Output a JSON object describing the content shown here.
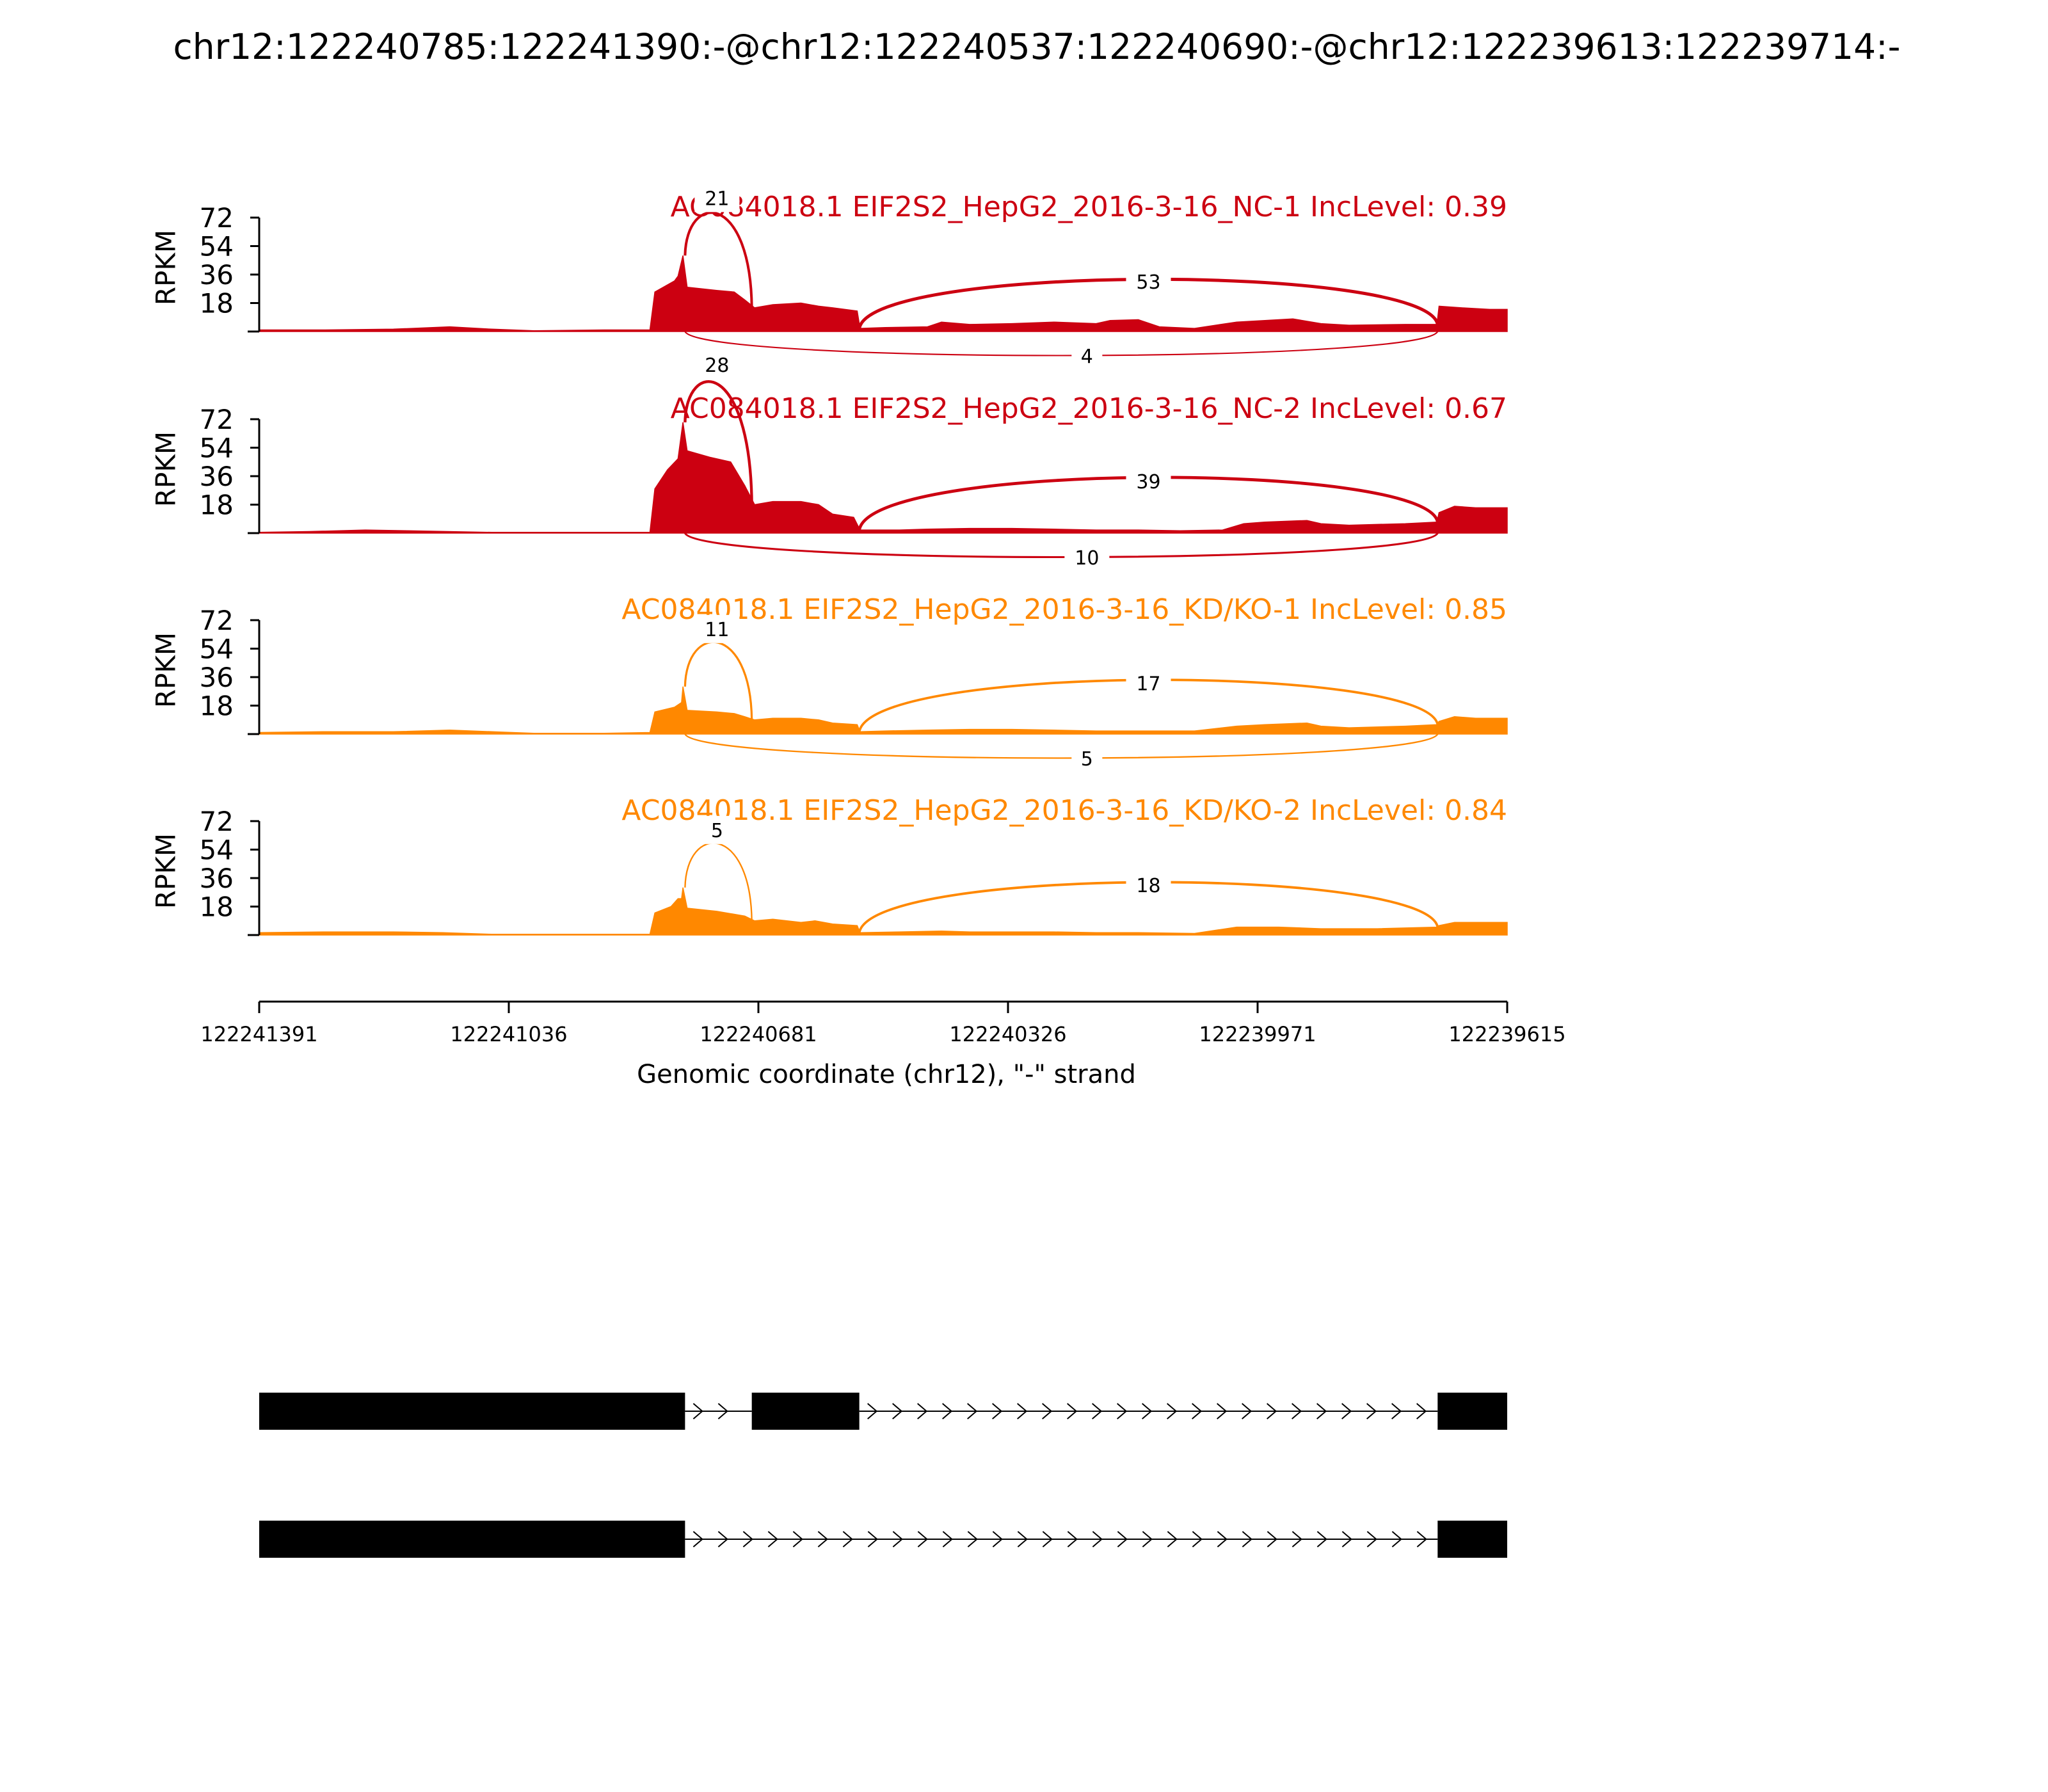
{
  "chart_data": {
    "type": "sashimi",
    "title": "chr12:122240785:122241390:-@chr12:122240537:122240690:-@chr12:122239613:122239714:-",
    "xlabel": "Genomic coordinate (chr12), \"-\" strand",
    "ylabel": "RPKM",
    "xlim": [
      122241391,
      122239615
    ],
    "x_ticks": [
      "122241391",
      "122241036",
      "122240681",
      "122240326",
      "122239971",
      "122239615"
    ],
    "ylim": [
      0,
      72
    ],
    "y_ticks": [
      "72",
      "54",
      "36",
      "18"
    ],
    "colors": {
      "nc": "#cc0011",
      "kd": "#ff8800",
      "structure": "#000000"
    },
    "tracks": [
      {
        "name": "AC084018.1 EIF2S2_HepG2_2016-3-16_NC-1 IncLevel: 0.39",
        "color": "#cc0011",
        "coverage": [
          [
            122241391,
            1.0
          ],
          [
            122241300,
            1.0
          ],
          [
            122241200,
            1.5
          ],
          [
            122241120,
            3.0
          ],
          [
            122241060,
            1.5
          ],
          [
            122241000,
            0.5
          ],
          [
            122240900,
            1.0
          ],
          [
            122240835,
            1.0
          ],
          [
            122240828,
            25
          ],
          [
            122240800,
            32
          ],
          [
            122240795,
            35
          ],
          [
            122240788,
            48
          ],
          [
            122240782,
            28
          ],
          [
            122240740,
            26
          ],
          [
            122240715,
            25
          ],
          [
            122240700,
            20
          ],
          [
            122240686,
            15
          ],
          [
            122240660,
            17
          ],
          [
            122240620,
            18
          ],
          [
            122240595,
            16
          ],
          [
            122240575,
            15
          ],
          [
            122240540,
            13
          ],
          [
            122240536,
            2
          ],
          [
            122240500,
            2.5
          ],
          [
            122240440,
            3
          ],
          [
            122240420,
            6
          ],
          [
            122240380,
            4.5
          ],
          [
            122240320,
            5
          ],
          [
            122240260,
            6
          ],
          [
            122240200,
            5
          ],
          [
            122240180,
            7
          ],
          [
            122240140,
            7.5
          ],
          [
            122240110,
            3
          ],
          [
            122240060,
            2
          ],
          [
            122240000,
            6
          ],
          [
            122239920,
            8
          ],
          [
            122239880,
            5
          ],
          [
            122239840,
            4
          ],
          [
            122239760,
            4.5
          ],
          [
            122239715,
            4.5
          ],
          [
            122239712,
            16
          ],
          [
            122239680,
            15
          ],
          [
            122239640,
            14
          ],
          [
            122239615,
            14
          ]
        ],
        "junctions": [
          {
            "label": "21",
            "from": 122240785,
            "to": 122240690,
            "side": "above"
          },
          {
            "label": "53",
            "from": 122240537,
            "to": 122239714,
            "side": "above"
          },
          {
            "label": "4",
            "from": 122240785,
            "to": 122239714,
            "side": "below"
          }
        ]
      },
      {
        "name": "AC084018.1 EIF2S2_HepG2_2016-3-16_NC-2 IncLevel: 0.67",
        "color": "#cc0011",
        "coverage": [
          [
            122241391,
            0.5
          ],
          [
            122241320,
            1.0
          ],
          [
            122241240,
            2.0
          ],
          [
            122241180,
            1.5
          ],
          [
            122241060,
            0.5
          ],
          [
            122240960,
            0.5
          ],
          [
            122240835,
            0.5
          ],
          [
            122240828,
            28
          ],
          [
            122240810,
            40
          ],
          [
            122240795,
            47
          ],
          [
            122240788,
            70
          ],
          [
            122240782,
            52
          ],
          [
            122240750,
            48
          ],
          [
            122240720,
            45
          ],
          [
            122240700,
            30
          ],
          [
            122240686,
            18
          ],
          [
            122240660,
            20
          ],
          [
            122240620,
            20
          ],
          [
            122240595,
            18
          ],
          [
            122240575,
            12
          ],
          [
            122240545,
            10
          ],
          [
            122240536,
            2
          ],
          [
            122240480,
            2
          ],
          [
            122240440,
            2.5
          ],
          [
            122240380,
            3
          ],
          [
            122240320,
            3
          ],
          [
            122240260,
            2.5
          ],
          [
            122240200,
            2
          ],
          [
            122240140,
            2
          ],
          [
            122240080,
            1.5
          ],
          [
            122240020,
            2
          ],
          [
            122239990,
            6
          ],
          [
            122239960,
            7
          ],
          [
            122239900,
            8
          ],
          [
            122239880,
            6
          ],
          [
            122239840,
            5
          ],
          [
            122239760,
            6
          ],
          [
            122239715,
            7
          ],
          [
            122239712,
            13
          ],
          [
            122239690,
            17
          ],
          [
            122239660,
            16
          ],
          [
            122239615,
            16
          ]
        ],
        "junctions": [
          {
            "label": "28",
            "from": 122240785,
            "to": 122240690,
            "side": "above"
          },
          {
            "label": "39",
            "from": 122240537,
            "to": 122239714,
            "side": "above"
          },
          {
            "label": "10",
            "from": 122240785,
            "to": 122239714,
            "side": "below"
          }
        ]
      },
      {
        "name": "AC084018.1 EIF2S2_HepG2_2016-3-16_KD/KO-1 IncLevel: 0.85",
        "color": "#ff8800",
        "coverage": [
          [
            122241391,
            1.0
          ],
          [
            122241300,
            1.5
          ],
          [
            122241200,
            1.5
          ],
          [
            122241120,
            2.5
          ],
          [
            122241060,
            1.5
          ],
          [
            122241000,
            0.5
          ],
          [
            122240900,
            0.5
          ],
          [
            122240835,
            1.0
          ],
          [
            122240828,
            14
          ],
          [
            122240800,
            17
          ],
          [
            122240790,
            20
          ],
          [
            122240788,
            30
          ],
          [
            122240782,
            15
          ],
          [
            122240740,
            14
          ],
          [
            122240715,
            13
          ],
          [
            122240700,
            11
          ],
          [
            122240686,
            9
          ],
          [
            122240660,
            10
          ],
          [
            122240620,
            10
          ],
          [
            122240595,
            9
          ],
          [
            122240575,
            7
          ],
          [
            122240540,
            6
          ],
          [
            122240536,
            1.5
          ],
          [
            122240500,
            2
          ],
          [
            122240440,
            2.5
          ],
          [
            122240380,
            3
          ],
          [
            122240320,
            3
          ],
          [
            122240260,
            2.5
          ],
          [
            122240200,
            2
          ],
          [
            122240140,
            2
          ],
          [
            122240060,
            2
          ],
          [
            122240000,
            5
          ],
          [
            122239960,
            6
          ],
          [
            122239900,
            7
          ],
          [
            122239880,
            5
          ],
          [
            122239840,
            4
          ],
          [
            122239760,
            5
          ],
          [
            122239715,
            6
          ],
          [
            122239712,
            8
          ],
          [
            122239690,
            11
          ],
          [
            122239660,
            10
          ],
          [
            122239615,
            10
          ]
        ],
        "junctions": [
          {
            "label": "11",
            "from": 122240785,
            "to": 122240690,
            "side": "above"
          },
          {
            "label": "17",
            "from": 122240537,
            "to": 122239714,
            "side": "above"
          },
          {
            "label": "5",
            "from": 122240785,
            "to": 122239714,
            "side": "below"
          }
        ]
      },
      {
        "name": "AC084018.1 EIF2S2_HepG2_2016-3-16_KD/KO-2 IncLevel: 0.84",
        "color": "#ff8800",
        "coverage": [
          [
            122241391,
            1.5
          ],
          [
            122241300,
            2.0
          ],
          [
            122241200,
            2.0
          ],
          [
            122241130,
            1.5
          ],
          [
            122241060,
            0.5
          ],
          [
            122240960,
            0.5
          ],
          [
            122240835,
            0.5
          ],
          [
            122240828,
            14
          ],
          [
            122240805,
            18
          ],
          [
            122240795,
            23
          ],
          [
            122240790,
            23
          ],
          [
            122240788,
            30
          ],
          [
            122240782,
            17
          ],
          [
            122240740,
            15
          ],
          [
            122240700,
            12
          ],
          [
            122240686,
            9
          ],
          [
            122240660,
            10
          ],
          [
            122240620,
            8
          ],
          [
            122240600,
            9
          ],
          [
            122240575,
            7
          ],
          [
            122240540,
            6
          ],
          [
            122240536,
            1.5
          ],
          [
            122240480,
            2
          ],
          [
            122240420,
            2.5
          ],
          [
            122240380,
            2
          ],
          [
            122240320,
            2
          ],
          [
            122240260,
            2
          ],
          [
            122240200,
            1.5
          ],
          [
            122240140,
            1.5
          ],
          [
            122240060,
            1
          ],
          [
            122240000,
            5
          ],
          [
            122239940,
            5
          ],
          [
            122239880,
            4
          ],
          [
            122239800,
            4
          ],
          [
            122239715,
            5
          ],
          [
            122239712,
            6
          ],
          [
            122239690,
            8
          ],
          [
            122239660,
            8
          ],
          [
            122239615,
            8
          ]
        ],
        "junctions": [
          {
            "label": "5",
            "from": 122240785,
            "to": 122240690,
            "side": "above"
          },
          {
            "label": "18",
            "from": 122240537,
            "to": 122239714,
            "side": "above"
          }
        ]
      }
    ],
    "transcripts": [
      {
        "exons": [
          [
            122241391,
            122240785
          ],
          [
            122240690,
            122240537
          ],
          [
            122239714,
            122239615
          ]
        ]
      },
      {
        "exons": [
          [
            122241391,
            122240785
          ],
          [
            122239714,
            122239615
          ]
        ]
      }
    ]
  }
}
